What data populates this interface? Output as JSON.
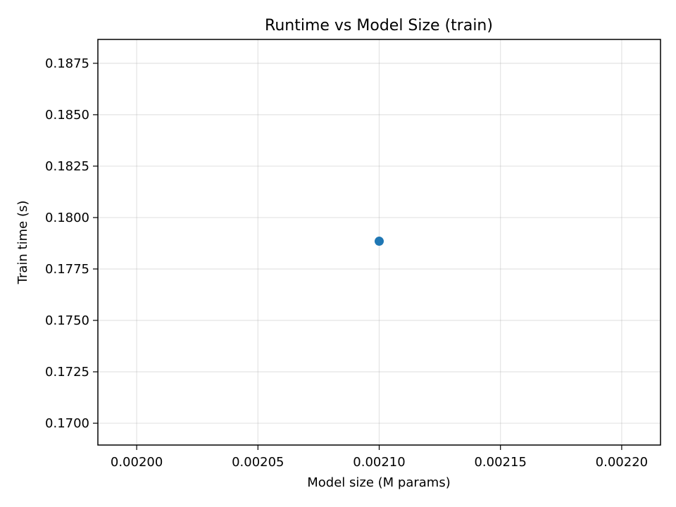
{
  "chart_data": {
    "type": "scatter",
    "title": "Runtime vs Model Size (train)",
    "xlabel": "Model size (M params)",
    "ylabel": "Train time (s)",
    "xlim": [
      0.001984,
      0.002216
    ],
    "ylim": [
      0.16894,
      0.18866
    ],
    "xticks": [
      "0.00200",
      "0.00205",
      "0.00210",
      "0.00215",
      "0.00220"
    ],
    "yticks": [
      "0.1700",
      "0.1725",
      "0.1750",
      "0.1775",
      "0.1800",
      "0.1825",
      "0.1850",
      "0.1875"
    ],
    "grid": true,
    "series": [
      {
        "color": "#1f77b4",
        "points": [
          {
            "x": 0.0021,
            "y": 0.17885
          }
        ]
      }
    ]
  }
}
